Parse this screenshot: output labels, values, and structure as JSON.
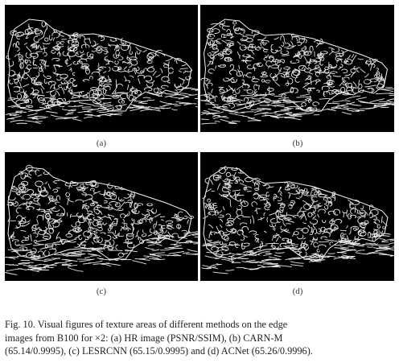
{
  "figure": {
    "panels": [
      {
        "id": "a",
        "label": "(a)"
      },
      {
        "id": "b",
        "label": "(b)"
      },
      {
        "id": "c",
        "label": "(c)"
      },
      {
        "id": "d",
        "label": "(d)"
      }
    ],
    "caption_lines": [
      "Fig. 10.   Visual figures of texture areas of different methods on the edge",
      "images from B100 for ×2: (a) HR image (PSNR/SSIM), (b) CARN-M",
      "(65.14/0.9995), (c) LESRCNN (65.15/0.9995) and (d) ACNet (65.26/0.9996)."
    ]
  }
}
